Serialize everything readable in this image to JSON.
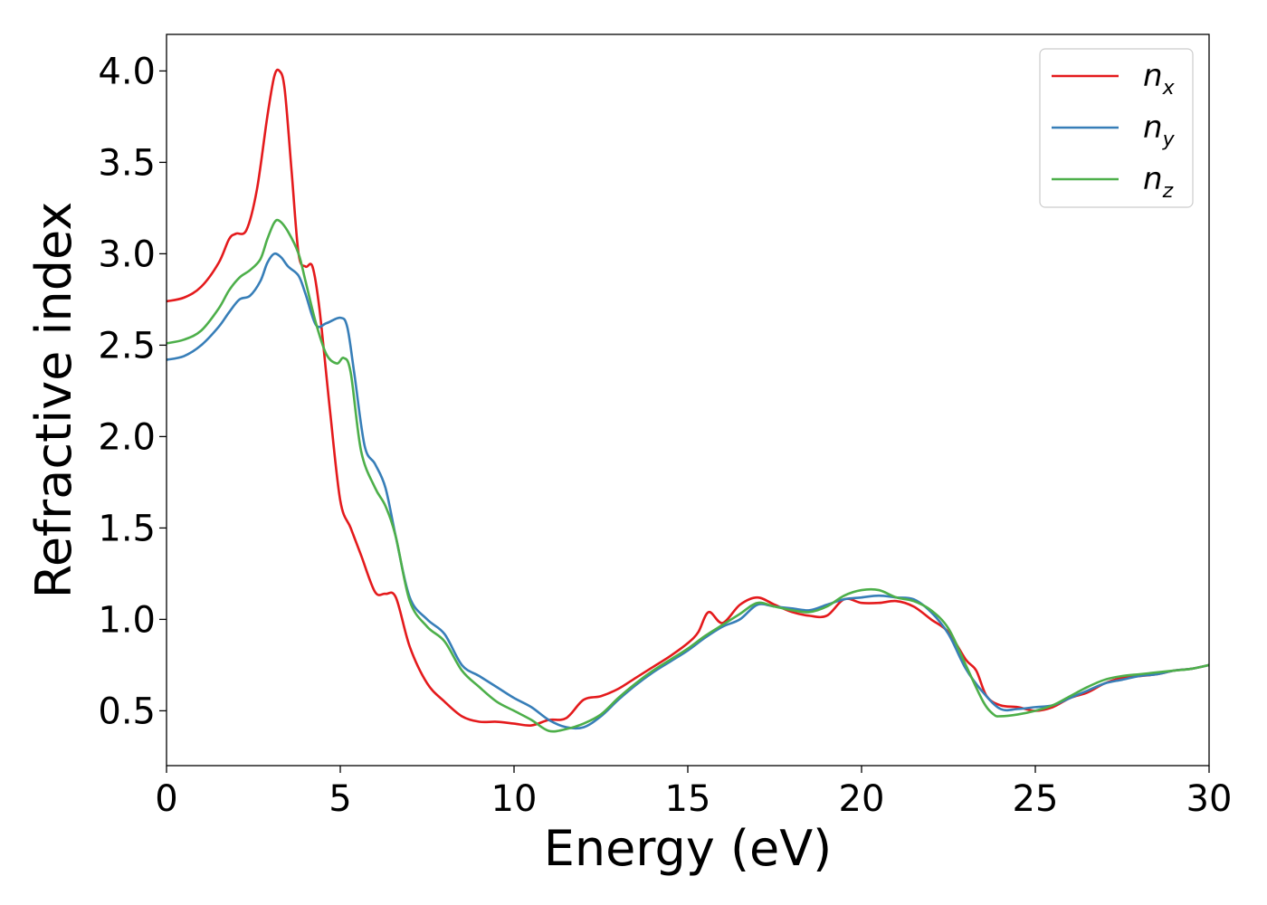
{
  "chart_data": {
    "type": "line",
    "title": "",
    "xlabel": "Energy (eV)",
    "ylabel": "Refractive index",
    "xlim": [
      0,
      30
    ],
    "ylim": [
      0.2,
      4.2
    ],
    "xticks": [
      0,
      5,
      10,
      15,
      20,
      25,
      30
    ],
    "xtick_labels": [
      "0",
      "5",
      "10",
      "15",
      "20",
      "25",
      "30"
    ],
    "yticks": [
      0.5,
      1.0,
      1.5,
      2.0,
      2.5,
      3.0,
      3.5,
      4.0
    ],
    "ytick_labels": [
      "0.5",
      "1.0",
      "1.5",
      "2.0",
      "2.5",
      "3.0",
      "3.5",
      "4.0"
    ],
    "grid": false,
    "legend_position": "top-right",
    "series": [
      {
        "name": "n_x",
        "label_main": "n",
        "label_sub": "x",
        "color": "#e41a1c",
        "x": [
          0,
          0.5,
          1.0,
          1.5,
          1.8,
          2.0,
          2.3,
          2.6,
          2.9,
          3.1,
          3.25,
          3.4,
          3.6,
          3.8,
          4.0,
          4.2,
          4.4,
          4.7,
          5.0,
          5.3,
          5.6,
          6.0,
          6.3,
          6.6,
          7.0,
          7.5,
          8.0,
          8.5,
          9.0,
          9.5,
          10.0,
          10.5,
          11.0,
          11.5,
          12.0,
          12.5,
          13.0,
          13.5,
          14.0,
          14.5,
          15.0,
          15.3,
          15.6,
          16.0,
          16.5,
          17.0,
          17.5,
          18.0,
          18.5,
          19.0,
          19.5,
          20.0,
          20.5,
          21.0,
          21.5,
          22.0,
          22.5,
          23.0,
          23.3,
          23.6,
          24.0,
          24.5,
          25.0,
          25.5,
          26.0,
          26.5,
          27.0,
          27.5,
          28.0,
          28.5,
          29.0,
          29.5,
          30.0
        ],
        "y": [
          2.74,
          2.76,
          2.82,
          2.95,
          3.08,
          3.11,
          3.13,
          3.35,
          3.75,
          3.97,
          4.0,
          3.9,
          3.45,
          3.0,
          2.93,
          2.93,
          2.7,
          2.15,
          1.65,
          1.5,
          1.35,
          1.15,
          1.14,
          1.12,
          0.85,
          0.65,
          0.55,
          0.47,
          0.44,
          0.44,
          0.43,
          0.42,
          0.45,
          0.46,
          0.56,
          0.58,
          0.62,
          0.68,
          0.74,
          0.8,
          0.87,
          0.93,
          1.04,
          0.98,
          1.08,
          1.12,
          1.08,
          1.04,
          1.02,
          1.02,
          1.11,
          1.09,
          1.09,
          1.1,
          1.07,
          1.0,
          0.93,
          0.78,
          0.72,
          0.58,
          0.53,
          0.52,
          0.5,
          0.52,
          0.57,
          0.6,
          0.65,
          0.68,
          0.69,
          0.7,
          0.72,
          0.73,
          0.75
        ]
      },
      {
        "name": "n_y",
        "label_main": "n",
        "label_sub": "y",
        "color": "#377eb8",
        "x": [
          0,
          0.5,
          1.0,
          1.5,
          1.8,
          2.1,
          2.4,
          2.7,
          2.9,
          3.1,
          3.3,
          3.5,
          3.8,
          4.0,
          4.3,
          4.6,
          5.0,
          5.2,
          5.4,
          5.7,
          6.0,
          6.3,
          6.6,
          7.0,
          7.5,
          8.0,
          8.5,
          9.0,
          9.5,
          10.0,
          10.5,
          11.0,
          11.5,
          12.0,
          12.5,
          13.0,
          13.5,
          14.0,
          14.5,
          15.0,
          15.5,
          16.0,
          16.5,
          17.0,
          17.5,
          18.0,
          18.5,
          19.0,
          19.5,
          20.0,
          20.5,
          21.0,
          21.5,
          22.0,
          22.5,
          23.0,
          23.5,
          24.0,
          24.5,
          25.0,
          25.5,
          26.0,
          26.5,
          27.0,
          27.5,
          28.0,
          28.5,
          29.0,
          29.5,
          30.0
        ],
        "y": [
          2.42,
          2.44,
          2.5,
          2.6,
          2.68,
          2.75,
          2.77,
          2.85,
          2.95,
          3.0,
          2.98,
          2.93,
          2.88,
          2.78,
          2.61,
          2.62,
          2.65,
          2.6,
          2.35,
          1.95,
          1.85,
          1.72,
          1.45,
          1.12,
          1.0,
          0.92,
          0.75,
          0.69,
          0.63,
          0.57,
          0.52,
          0.45,
          0.41,
          0.41,
          0.47,
          0.56,
          0.64,
          0.71,
          0.77,
          0.83,
          0.9,
          0.96,
          1.0,
          1.08,
          1.07,
          1.06,
          1.05,
          1.08,
          1.11,
          1.12,
          1.13,
          1.12,
          1.11,
          1.04,
          0.92,
          0.73,
          0.6,
          0.51,
          0.51,
          0.52,
          0.53,
          0.57,
          0.61,
          0.65,
          0.67,
          0.69,
          0.7,
          0.72,
          0.73,
          0.75
        ]
      },
      {
        "name": "n_z",
        "label_main": "n",
        "label_sub": "z",
        "color": "#4daf4a",
        "x": [
          0,
          0.5,
          1.0,
          1.5,
          1.8,
          2.1,
          2.4,
          2.7,
          2.9,
          3.1,
          3.25,
          3.5,
          3.8,
          4.0,
          4.3,
          4.6,
          4.9,
          5.1,
          5.3,
          5.6,
          6.0,
          6.3,
          6.6,
          7.0,
          7.5,
          8.0,
          8.5,
          9.0,
          9.5,
          10.0,
          10.5,
          11.0,
          11.5,
          12.0,
          12.5,
          13.0,
          13.5,
          14.0,
          14.5,
          15.0,
          15.5,
          16.0,
          16.5,
          17.0,
          17.5,
          18.0,
          18.5,
          19.0,
          19.5,
          20.0,
          20.5,
          21.0,
          21.5,
          22.0,
          22.5,
          23.0,
          23.5,
          23.8,
          24.0,
          24.5,
          25.0,
          25.5,
          26.0,
          26.5,
          27.0,
          27.5,
          28.0,
          28.5,
          29.0,
          29.5,
          30.0
        ],
        "y": [
          2.51,
          2.53,
          2.58,
          2.7,
          2.8,
          2.87,
          2.91,
          2.97,
          3.08,
          3.17,
          3.18,
          3.12,
          3.0,
          2.85,
          2.62,
          2.45,
          2.4,
          2.43,
          2.35,
          1.92,
          1.72,
          1.62,
          1.45,
          1.1,
          0.96,
          0.88,
          0.72,
          0.63,
          0.55,
          0.5,
          0.45,
          0.39,
          0.4,
          0.43,
          0.48,
          0.57,
          0.65,
          0.72,
          0.78,
          0.84,
          0.91,
          0.97,
          1.03,
          1.09,
          1.07,
          1.05,
          1.04,
          1.07,
          1.13,
          1.16,
          1.16,
          1.12,
          1.1,
          1.05,
          0.95,
          0.75,
          0.55,
          0.48,
          0.47,
          0.48,
          0.5,
          0.53,
          0.58,
          0.63,
          0.67,
          0.69,
          0.7,
          0.71,
          0.72,
          0.73,
          0.75
        ]
      }
    ]
  }
}
